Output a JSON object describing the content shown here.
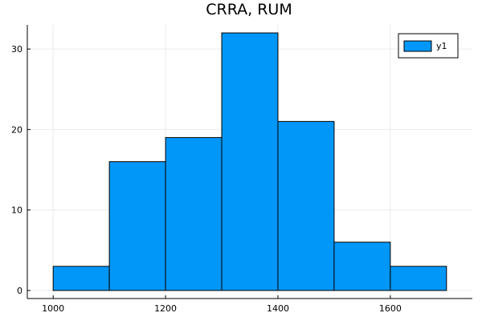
{
  "chart_data": {
    "type": "bar",
    "subtype": "histogram",
    "title": "CRRA, RUM",
    "xlabel": "",
    "ylabel": "",
    "bins": [
      {
        "start": 1000,
        "end": 1100,
        "count": 3
      },
      {
        "start": 1100,
        "end": 1200,
        "count": 16
      },
      {
        "start": 1200,
        "end": 1300,
        "count": 19
      },
      {
        "start": 1300,
        "end": 1400,
        "count": 32
      },
      {
        "start": 1400,
        "end": 1500,
        "count": 21
      },
      {
        "start": 1500,
        "end": 1600,
        "count": 6
      },
      {
        "start": 1600,
        "end": 1700,
        "count": 3
      }
    ],
    "xlim": [
      954,
      1746
    ],
    "ylim": [
      -1,
      33
    ],
    "xticks": [
      1000,
      1200,
      1400,
      1600
    ],
    "yticks": [
      0,
      10,
      20,
      30
    ],
    "grid": true,
    "legend": {
      "placement": "top-right",
      "entries": [
        {
          "name": "y1"
        }
      ]
    },
    "colors": {
      "bar": "#0097f8",
      "edge": "#000000",
      "grid": "#ebebeb",
      "axis": "#000000"
    }
  }
}
